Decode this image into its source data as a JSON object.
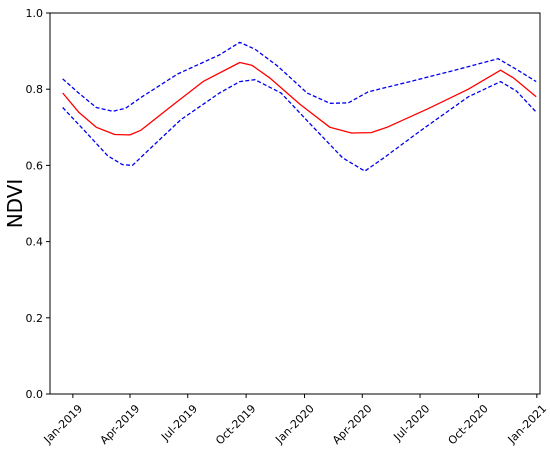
{
  "chart_data": {
    "type": "line",
    "title": "",
    "xlabel": "",
    "ylabel": "NDVI",
    "ylim": [
      0.0,
      1.0
    ],
    "xlim": [
      "2018-11-26",
      "2021-01-06"
    ],
    "grid": false,
    "legend": "none",
    "yticks": [
      "0.0",
      "0.2",
      "0.4",
      "0.6",
      "0.8",
      "1.0"
    ],
    "xticks": [
      {
        "date": "2019-01-01",
        "label": "Jan-2019"
      },
      {
        "date": "2019-04-01",
        "label": "Apr-2019"
      },
      {
        "date": "2019-07-01",
        "label": "Jul-2019"
      },
      {
        "date": "2019-10-01",
        "label": "Oct-2019"
      },
      {
        "date": "2020-01-01",
        "label": "Jan-2020"
      },
      {
        "date": "2020-04-01",
        "label": "Apr-2020"
      },
      {
        "date": "2020-07-01",
        "label": "Jul-2020"
      },
      {
        "date": "2020-10-01",
        "label": "Oct-2020"
      },
      {
        "date": "2021-01-01",
        "label": "Jan-2021"
      }
    ],
    "series": [
      {
        "color": "#ff0000",
        "style": "solid",
        "points": [
          [
            "2018-12-16",
            0.79
          ],
          [
            "2019-01-10",
            0.74
          ],
          [
            "2019-02-07",
            0.7
          ],
          [
            "2019-03-08",
            0.681
          ],
          [
            "2019-04-01",
            0.68
          ],
          [
            "2019-04-18",
            0.692
          ],
          [
            "2019-06-01",
            0.75
          ],
          [
            "2019-07-25",
            0.82
          ],
          [
            "2019-09-21",
            0.87
          ],
          [
            "2019-10-10",
            0.863
          ],
          [
            "2019-11-07",
            0.83
          ],
          [
            "2019-12-25",
            0.76
          ],
          [
            "2020-02-10",
            0.7
          ],
          [
            "2020-03-15",
            0.685
          ],
          [
            "2020-04-15",
            0.686
          ],
          [
            "2020-05-10",
            0.7
          ],
          [
            "2020-07-15",
            0.75
          ],
          [
            "2020-09-15",
            0.8
          ],
          [
            "2020-11-05",
            0.85
          ],
          [
            "2020-11-25",
            0.83
          ],
          [
            "2020-12-31",
            0.78
          ]
        ]
      },
      {
        "color": "#0000ee",
        "style": "dashed",
        "points": [
          [
            "2018-12-16",
            0.827
          ],
          [
            "2019-01-10",
            0.79
          ],
          [
            "2019-02-07",
            0.752
          ],
          [
            "2019-03-05",
            0.742
          ],
          [
            "2019-03-25",
            0.75
          ],
          [
            "2019-04-20",
            0.78
          ],
          [
            "2019-06-15",
            0.84
          ],
          [
            "2019-08-20",
            0.89
          ],
          [
            "2019-09-21",
            0.923
          ],
          [
            "2019-10-15",
            0.905
          ],
          [
            "2019-11-20",
            0.86
          ],
          [
            "2020-01-05",
            0.79
          ],
          [
            "2020-02-10",
            0.763
          ],
          [
            "2020-03-10",
            0.764
          ],
          [
            "2020-04-10",
            0.793
          ],
          [
            "2020-06-15",
            0.82
          ],
          [
            "2020-08-25",
            0.85
          ],
          [
            "2020-11-01",
            0.88
          ],
          [
            "2020-11-30",
            0.852
          ],
          [
            "2020-12-31",
            0.82
          ]
        ]
      },
      {
        "color": "#0000ee",
        "style": "dashed",
        "points": [
          [
            "2018-12-16",
            0.752
          ],
          [
            "2019-01-20",
            0.69
          ],
          [
            "2019-02-25",
            0.625
          ],
          [
            "2019-03-20",
            0.602
          ],
          [
            "2019-04-05",
            0.6
          ],
          [
            "2019-04-30",
            0.64
          ],
          [
            "2019-06-20",
            0.72
          ],
          [
            "2019-08-20",
            0.79
          ],
          [
            "2019-09-21",
            0.82
          ],
          [
            "2019-10-15",
            0.825
          ],
          [
            "2019-11-25",
            0.79
          ],
          [
            "2020-01-15",
            0.7
          ],
          [
            "2020-03-01",
            0.62
          ],
          [
            "2020-04-05",
            0.585
          ],
          [
            "2020-05-05",
            0.62
          ],
          [
            "2020-07-01",
            0.69
          ],
          [
            "2020-09-15",
            0.78
          ],
          [
            "2020-11-05",
            0.82
          ],
          [
            "2020-11-30",
            0.795
          ],
          [
            "2020-12-31",
            0.74
          ]
        ]
      }
    ]
  }
}
